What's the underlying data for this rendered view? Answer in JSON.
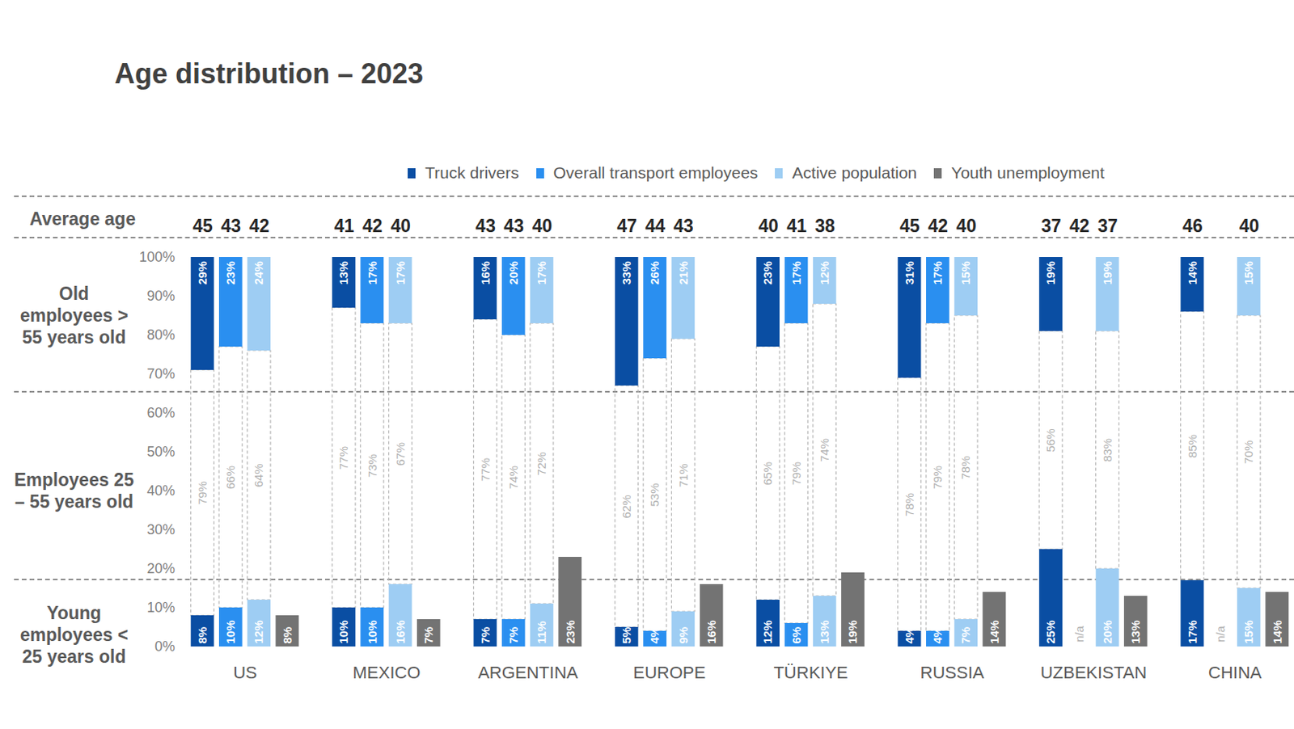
{
  "chart_data": {
    "type": "bar",
    "stacked": true,
    "data_labels": true,
    "title": "Age distribution – 2023",
    "row_label": "Average age",
    "bands": [
      "Old employees > 55 years old",
      "Employees 25 – 55 years old",
      "Young employees < 25 years old"
    ],
    "categories": [
      "US",
      "MEXICO",
      "ARGENTINA",
      "EUROPE",
      "TÜRKIYE",
      "RUSSIA",
      "UZBEKISTAN",
      "CHINA"
    ],
    "ylim": [
      0,
      100
    ],
    "yticks": [
      {
        "value": 0,
        "label": "0%"
      },
      {
        "value": 10,
        "label": "10%"
      },
      {
        "value": 20,
        "label": "20%"
      },
      {
        "value": 30,
        "label": "30%"
      },
      {
        "value": 40,
        "label": "40%"
      },
      {
        "value": 50,
        "label": "50%"
      },
      {
        "value": 60,
        "label": "60%"
      },
      {
        "value": 70,
        "label": "70%"
      },
      {
        "value": 80,
        "label": "80%"
      },
      {
        "value": 90,
        "label": "90%"
      },
      {
        "value": 100,
        "label": "100%"
      }
    ],
    "series": [
      {
        "name": "Truck drivers",
        "color": "#0a4ea3",
        "young": [
          8,
          10,
          7,
          5,
          12,
          4,
          25,
          17
        ],
        "young_labels": [
          "8%",
          "10%",
          "7%",
          "5%",
          "12%",
          "4%",
          "25%",
          "17%"
        ],
        "middle": [
          79,
          77,
          77,
          62,
          65,
          78,
          56,
          85
        ],
        "middle_labels": [
          "79%",
          "77%",
          "77%",
          "62%",
          "65%",
          "78%",
          "56%",
          "85%"
        ],
        "old": [
          29,
          13,
          16,
          33,
          23,
          31,
          19,
          14
        ],
        "old_labels": [
          "29%",
          "13%",
          "16%",
          "33%",
          "23%",
          "31%",
          "19%",
          "14%"
        ],
        "average_age": [
          45,
          41,
          43,
          47,
          40,
          45,
          37,
          46
        ]
      },
      {
        "name": "Overall transport employees",
        "color": "#2a8ff0",
        "young": [
          10,
          10,
          7,
          4,
          6,
          4,
          null,
          null
        ],
        "young_labels": [
          "10%",
          "10%",
          "7%",
          "4%",
          "6%",
          "4%",
          "n/a",
          "n/a"
        ],
        "middle": [
          66,
          73,
          74,
          53,
          79,
          79,
          null,
          null
        ],
        "middle_labels": [
          "66%",
          "73%",
          "74%",
          "53%",
          "79%",
          "79%",
          null,
          null
        ],
        "old": [
          23,
          17,
          20,
          26,
          17,
          17,
          null,
          null
        ],
        "old_labels": [
          "23%",
          "17%",
          "20%",
          "26%",
          "17%",
          "17%",
          null,
          null
        ],
        "average_age": [
          43,
          42,
          43,
          44,
          41,
          42,
          42,
          null
        ]
      },
      {
        "name": "Active population",
        "color": "#9ecdf3",
        "young": [
          12,
          16,
          11,
          9,
          13,
          7,
          20,
          15
        ],
        "young_labels": [
          "12%",
          "16%",
          "11%",
          "9%",
          "13%",
          "7%",
          "20%",
          "15%"
        ],
        "middle": [
          64,
          67,
          72,
          71,
          74,
          78,
          83,
          70
        ],
        "middle_labels": [
          "64%",
          "67%",
          "72%",
          "71%",
          "74%",
          "78%",
          "83%",
          "70%"
        ],
        "old": [
          24,
          17,
          17,
          21,
          12,
          15,
          19,
          15
        ],
        "old_labels": [
          "24%",
          "17%",
          "17%",
          "21%",
          "12%",
          "15%",
          "19%",
          "15%"
        ],
        "average_age": [
          42,
          40,
          40,
          43,
          38,
          40,
          37,
          40
        ]
      },
      {
        "name": "Youth unemployment",
        "color": "#737373",
        "values": [
          8,
          7,
          23,
          16,
          19,
          14,
          13,
          14
        ],
        "value_labels": [
          "8%",
          "7%",
          "23%",
          "16%",
          "19%",
          "14%",
          "13%",
          "14%"
        ]
      }
    ]
  }
}
